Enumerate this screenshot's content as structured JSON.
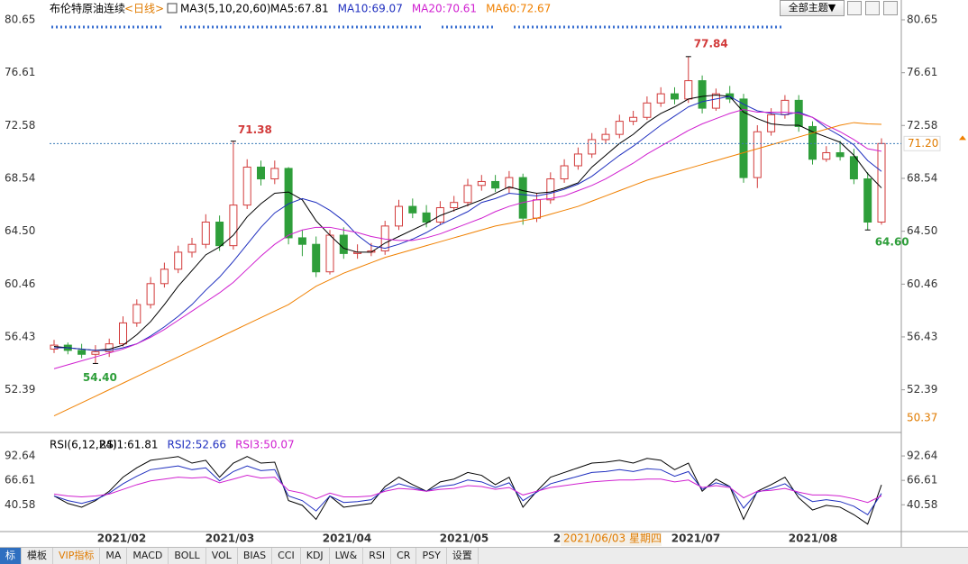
{
  "header": {
    "title": "布伦特原油连续",
    "period": "<日线>",
    "indicator": "MA3(5,10,20,60)",
    "theme_button": "全部主题▼"
  },
  "chart_data": [
    {
      "type": "candlestick",
      "open": [
        55.5,
        55.8,
        55.4,
        55.1,
        55.3,
        55.9,
        57.5,
        58.9,
        60.5,
        61.6,
        62.9,
        63.5,
        65.2,
        63.4,
        66.5,
        69.4,
        68.5,
        69.3,
        64.0,
        63.5,
        61.4,
        64.2,
        62.8,
        62.9,
        63.0,
        64.9,
        66.4,
        65.9,
        65.2,
        66.3,
        66.7,
        68.0,
        68.3,
        67.8,
        68.6,
        65.5,
        66.9,
        68.5,
        69.5,
        70.4,
        71.5,
        71.9,
        72.9,
        73.2,
        74.3,
        75.0,
        74.6,
        76.0,
        73.9,
        75.0,
        74.6,
        68.6,
        72.1,
        73.4,
        74.5,
        72.5,
        70.0,
        70.5,
        70.2,
        68.5,
        65.2
      ],
      "high": [
        56.2,
        56.0,
        55.9,
        55.8,
        56.3,
        58.0,
        59.3,
        61.0,
        62.1,
        63.4,
        64.0,
        65.8,
        65.7,
        71.38,
        70.0,
        69.9,
        69.9,
        69.4,
        64.6,
        64.1,
        64.6,
        64.8,
        63.5,
        63.6,
        65.3,
        66.9,
        67.0,
        66.5,
        66.8,
        67.2,
        68.5,
        68.8,
        68.8,
        69.1,
        68.9,
        67.4,
        69.0,
        70.0,
        70.9,
        72.0,
        72.4,
        73.4,
        73.7,
        74.8,
        75.5,
        75.5,
        77.84,
        76.4,
        75.4,
        75.6,
        75.0,
        72.6,
        73.9,
        74.9,
        74.9,
        72.9,
        71.0,
        71.4,
        70.8,
        69.0,
        71.6
      ],
      "low": [
        55.2,
        55.1,
        54.8,
        54.4,
        54.9,
        55.7,
        57.2,
        58.6,
        60.2,
        61.3,
        62.5,
        63.2,
        63.0,
        63.1,
        66.2,
        68.0,
        68.1,
        63.5,
        62.6,
        61.0,
        61.2,
        62.4,
        62.4,
        62.6,
        62.7,
        64.6,
        65.5,
        64.8,
        65.0,
        66.0,
        66.4,
        67.6,
        67.5,
        67.4,
        65.0,
        65.2,
        66.6,
        68.2,
        69.2,
        70.1,
        71.2,
        71.6,
        72.6,
        73.0,
        74.0,
        74.2,
        74.3,
        73.5,
        73.7,
        74.3,
        68.2,
        67.8,
        71.8,
        73.1,
        72.1,
        69.6,
        69.8,
        69.9,
        68.1,
        64.6,
        65.0
      ],
      "close": [
        55.8,
        55.4,
        55.1,
        55.3,
        55.9,
        57.5,
        58.9,
        60.5,
        61.6,
        62.9,
        63.5,
        65.2,
        63.4,
        66.5,
        69.4,
        68.5,
        69.3,
        64.0,
        63.5,
        61.4,
        64.2,
        62.8,
        62.9,
        63.0,
        64.9,
        66.4,
        65.9,
        65.2,
        66.3,
        66.7,
        68.0,
        68.3,
        67.8,
        68.6,
        65.5,
        66.9,
        68.5,
        69.5,
        70.4,
        71.5,
        71.9,
        72.9,
        73.2,
        74.3,
        75.0,
        74.6,
        76.0,
        73.9,
        75.0,
        74.6,
        68.6,
        72.1,
        73.4,
        74.5,
        72.5,
        70.0,
        70.5,
        70.2,
        68.5,
        65.2,
        71.2
      ],
      "up_color": "#d23a3a",
      "down_color": "#2e9e3a",
      "series": [
        {
          "name": "MA5:67.81",
          "color": "#000000",
          "values": [
            55.7,
            55.6,
            55.5,
            55.4,
            55.5,
            55.8,
            56.6,
            57.6,
            58.9,
            60.3,
            61.5,
            62.7,
            63.3,
            64.2,
            65.6,
            66.6,
            67.4,
            67.5,
            66.9,
            65.3,
            64.2,
            63.2,
            62.9,
            62.9,
            63.6,
            64.1,
            64.6,
            65.1,
            65.7,
            66.1,
            66.5,
            66.9,
            67.4,
            67.9,
            67.6,
            67.4,
            67.5,
            67.8,
            68.2,
            69.4,
            70.3,
            71.2,
            71.9,
            72.8,
            73.5,
            74.0,
            74.6,
            74.8,
            74.9,
            74.8,
            73.6,
            73.1,
            72.7,
            72.6,
            72.6,
            72.1,
            71.7,
            71.3,
            70.3,
            68.9,
            67.81
          ]
        },
        {
          "name": "MA10:69.07",
          "color": "#1f2fbf",
          "values": [
            55.6,
            55.6,
            55.5,
            55.4,
            55.4,
            55.6,
            55.9,
            56.5,
            57.2,
            58.0,
            58.9,
            60.0,
            61.0,
            62.2,
            63.5,
            64.8,
            65.9,
            66.6,
            67.0,
            66.7,
            66.1,
            65.3,
            64.2,
            63.4,
            63.2,
            63.5,
            63.9,
            64.4,
            65.0,
            65.5,
            66.0,
            66.7,
            67.0,
            67.4,
            67.3,
            67.2,
            67.4,
            67.7,
            68.1,
            68.7,
            69.5,
            70.3,
            71.0,
            71.8,
            72.6,
            73.3,
            74.0,
            74.4,
            74.6,
            74.8,
            74.2,
            73.7,
            73.5,
            73.4,
            73.6,
            73.2,
            72.4,
            71.8,
            71.1,
            69.9,
            69.07
          ]
        },
        {
          "name": "MA20:70.61",
          "color": "#d020d0",
          "values": [
            54.0,
            54.3,
            54.6,
            54.9,
            55.2,
            55.5,
            55.9,
            56.4,
            57.0,
            57.7,
            58.4,
            59.1,
            59.8,
            60.6,
            61.6,
            62.6,
            63.5,
            64.2,
            64.6,
            64.8,
            64.8,
            64.6,
            64.4,
            64.1,
            63.9,
            63.8,
            63.8,
            64.0,
            64.3,
            64.7,
            65.1,
            65.5,
            66.0,
            66.4,
            66.7,
            66.9,
            67.0,
            67.2,
            67.6,
            68.0,
            68.5,
            69.1,
            69.7,
            70.4,
            71.0,
            71.6,
            72.2,
            72.7,
            73.1,
            73.5,
            73.8,
            73.6,
            73.6,
            73.6,
            73.5,
            73.2,
            72.6,
            72.1,
            71.5,
            70.8,
            70.61
          ]
        },
        {
          "name": "MA60:72.67",
          "color": "#f08000",
          "values": [
            50.4,
            50.9,
            51.4,
            51.9,
            52.4,
            52.9,
            53.4,
            53.9,
            54.4,
            54.9,
            55.4,
            55.9,
            56.4,
            56.9,
            57.4,
            57.9,
            58.4,
            58.9,
            59.6,
            60.3,
            60.8,
            61.3,
            61.7,
            62.1,
            62.5,
            62.8,
            63.1,
            63.4,
            63.7,
            64.0,
            64.3,
            64.6,
            64.9,
            65.1,
            65.3,
            65.5,
            65.8,
            66.1,
            66.4,
            66.8,
            67.2,
            67.6,
            68.0,
            68.4,
            68.7,
            69.0,
            69.3,
            69.6,
            69.9,
            70.2,
            70.5,
            70.8,
            71.1,
            71.4,
            71.7,
            72.0,
            72.3,
            72.6,
            72.8,
            72.7,
            72.67
          ]
        }
      ],
      "ylim": [
        50.37,
        80.65
      ],
      "yticks": [
        80.65,
        76.61,
        72.58,
        68.54,
        {
          "value": 64.5,
          "label": "64.50"
        },
        60.46,
        56.43,
        52.39
      ],
      "x_labels": [
        "2021/02",
        "2021/03",
        "2021/04",
        "2021/05",
        "2",
        "2021/07",
        "2021/08"
      ],
      "crosshair_label": "2021/06/03 星期四",
      "last_price": {
        "value": 71.2,
        "label": "71.20"
      },
      "annotations": [
        {
          "label": "77.84",
          "value": 77.84,
          "color": "#d23a3a"
        },
        {
          "label": "71.38",
          "value": 71.38,
          "color": "#d23a3a"
        },
        {
          "label": "54.40",
          "value": 54.4,
          "color": "#2e9e3a"
        },
        {
          "label": "64.60",
          "value": 64.6,
          "color": "#2e9e3a"
        }
      ]
    },
    {
      "type": "line",
      "title": "RSI(6,12,24)",
      "series": [
        {
          "name": "RSI1:61.81",
          "color": "#000000",
          "values": [
            50,
            42,
            38,
            45,
            55,
            70,
            80,
            88,
            90,
            92,
            85,
            88,
            70,
            85,
            92,
            85,
            86,
            45,
            40,
            25,
            50,
            38,
            40,
            42,
            60,
            70,
            62,
            55,
            65,
            68,
            75,
            72,
            62,
            70,
            38,
            55,
            70,
            75,
            80,
            85,
            86,
            88,
            85,
            90,
            88,
            78,
            85,
            55,
            68,
            60,
            25,
            55,
            62,
            70,
            48,
            35,
            40,
            38,
            30,
            20,
            61.81
          ]
        },
        {
          "name": "RSI2:52.66",
          "color": "#1f2fbf",
          "values": [
            50,
            45,
            42,
            46,
            53,
            63,
            71,
            78,
            80,
            82,
            78,
            80,
            66,
            76,
            82,
            77,
            78,
            50,
            45,
            34,
            50,
            43,
            44,
            46,
            57,
            63,
            59,
            55,
            60,
            62,
            67,
            65,
            59,
            64,
            45,
            54,
            63,
            67,
            71,
            75,
            76,
            78,
            76,
            79,
            78,
            71,
            76,
            57,
            64,
            60,
            37,
            54,
            58,
            63,
            52,
            44,
            46,
            44,
            39,
            30,
            52.66
          ]
        },
        {
          "name": "RSI3:50.07",
          "color": "#d020d0",
          "values": [
            52,
            50,
            49,
            50,
            52,
            57,
            62,
            66,
            68,
            70,
            69,
            70,
            64,
            68,
            72,
            69,
            70,
            56,
            53,
            47,
            53,
            49,
            49,
            50,
            55,
            58,
            57,
            55,
            57,
            58,
            61,
            60,
            57,
            59,
            51,
            55,
            59,
            61,
            63,
            65,
            66,
            67,
            67,
            68,
            68,
            65,
            67,
            59,
            61,
            59,
            48,
            55,
            56,
            58,
            54,
            51,
            51,
            50,
            47,
            43,
            50.07
          ]
        }
      ],
      "ylim": [
        12,
        110
      ],
      "yticks": [
        92.64,
        66.61,
        40.58
      ]
    }
  ],
  "toolbar": [
    "标",
    "模板",
    "VIP指标",
    "MA",
    "MACD",
    "BOLL",
    "VOL",
    "BIAS",
    "CCI",
    "KDJ",
    "LW&",
    "RSI",
    "CR",
    "PSY",
    "设置"
  ]
}
